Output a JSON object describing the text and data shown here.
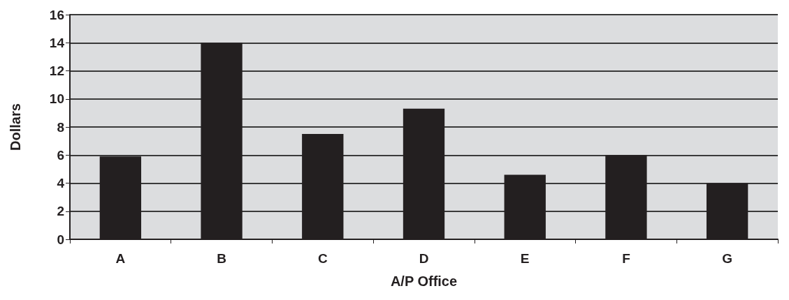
{
  "chart_data": {
    "type": "bar",
    "xlabel": "A/P Office",
    "ylabel": "Dollars",
    "categories": [
      "A",
      "B",
      "C",
      "D",
      "E",
      "F",
      "G"
    ],
    "values": [
      5.9,
      14,
      7.5,
      9.3,
      4.6,
      6.0,
      4.0
    ],
    "color": "#231f20",
    "ylim": [
      0,
      16
    ],
    "yticks": [
      0,
      2,
      4,
      6,
      8,
      10,
      12,
      14,
      16
    ],
    "grid": "y"
  }
}
